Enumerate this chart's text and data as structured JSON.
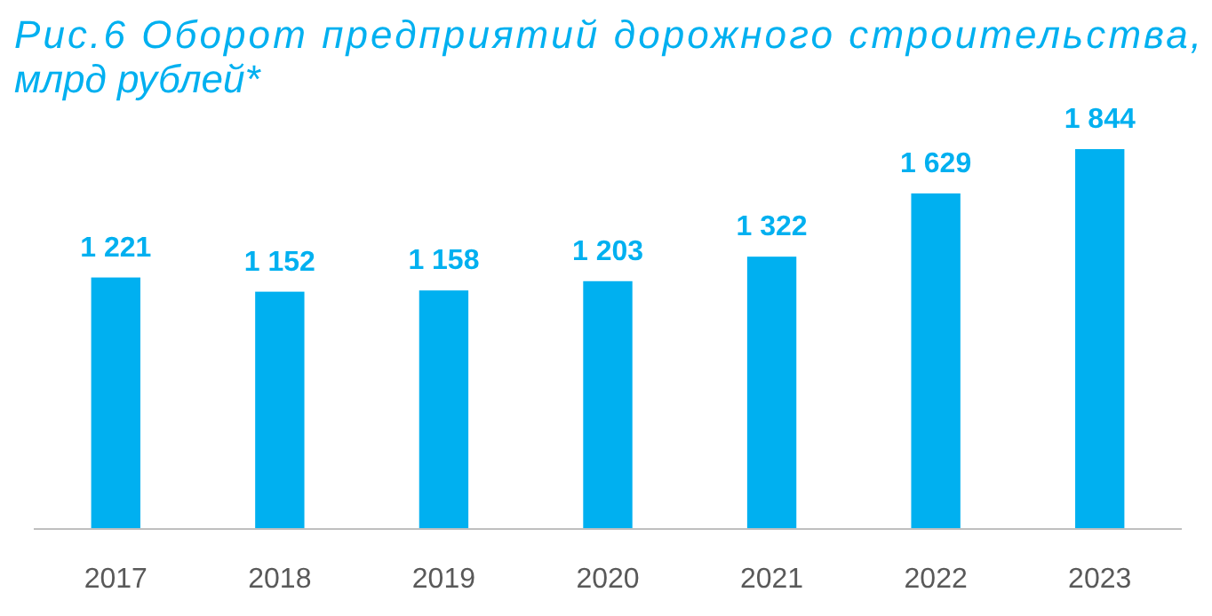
{
  "chart_data": {
    "type": "bar",
    "title": "Рис.6 Оборот предприятий дорожного строительства,\nмлрд рублей*",
    "categories": [
      "2017",
      "2018",
      "2019",
      "2020",
      "2021",
      "2022",
      "2023"
    ],
    "values": [
      1221,
      1152,
      1158,
      1203,
      1322,
      1629,
      1844
    ],
    "value_labels": [
      "1 221",
      "1 152",
      "1 158",
      "1 203",
      "1 322",
      "1 629",
      "1 844"
    ],
    "color": "#00b0f0"
  }
}
